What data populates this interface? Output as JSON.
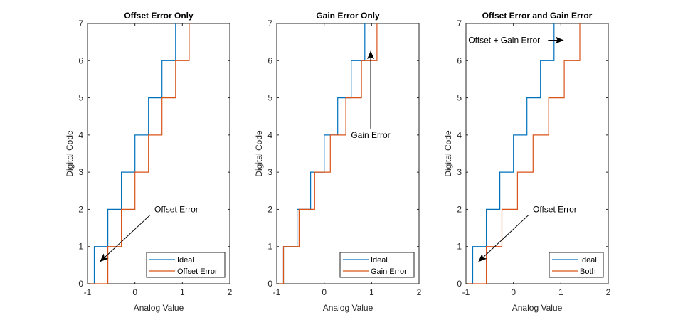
{
  "chart_data": [
    {
      "type": "line",
      "step": true,
      "title": "Offset Error Only",
      "xlabel": "Analog Value",
      "ylabel": "Digital Code",
      "xlim": [
        -1,
        2
      ],
      "ylim": [
        0,
        7
      ],
      "xticks": [
        "-1",
        "0",
        "1",
        "2"
      ],
      "yticks": [
        "0",
        "1",
        "2",
        "3",
        "4",
        "5",
        "6",
        "7"
      ],
      "grid": false,
      "legend": {
        "placement": "bottom-right",
        "entries": [
          "Ideal",
          "Offset Error"
        ]
      },
      "series": [
        {
          "name": "Ideal",
          "color": "#0072BD",
          "transitions": [
            -0.857,
            -0.571,
            -0.286,
            0.0,
            0.286,
            0.571,
            0.857
          ]
        },
        {
          "name": "Offset Error",
          "color": "#D95319",
          "transitions": [
            -0.571,
            -0.286,
            0.0,
            0.286,
            0.571,
            0.857,
            1.143
          ]
        }
      ],
      "annotations": [
        {
          "text": "Offset Error",
          "text_at": [
            0.2,
            2.0
          ],
          "arrow_to": [
            -0.73,
            0.6
          ]
        }
      ]
    },
    {
      "type": "line",
      "step": true,
      "title": "Gain Error Only",
      "xlabel": "Analog Value",
      "ylabel": "Digital Code",
      "xlim": [
        -1,
        2
      ],
      "ylim": [
        0,
        7
      ],
      "xticks": [
        "-1",
        "0",
        "1",
        "2"
      ],
      "yticks": [
        "0",
        "1",
        "2",
        "3",
        "4",
        "5",
        "6",
        "7"
      ],
      "grid": false,
      "legend": {
        "placement": "bottom-right",
        "entries": [
          "Ideal",
          "Gain Error"
        ]
      },
      "series": [
        {
          "name": "Ideal",
          "color": "#0072BD",
          "transitions": [
            -0.857,
            -0.571,
            -0.286,
            0.0,
            0.286,
            0.571,
            0.857
          ]
        },
        {
          "name": "Gain Error",
          "color": "#D95319",
          "transitions": [
            -0.857,
            -0.529,
            -0.2,
            0.129,
            0.457,
            0.786,
            1.114
          ]
        }
      ],
      "annotations": [
        {
          "text": "Gain Error",
          "text_at": [
            0.98,
            4.0
          ],
          "arrow_to": [
            0.98,
            6.25
          ]
        }
      ]
    },
    {
      "type": "line",
      "step": true,
      "title": "Offset Error and Gain Error",
      "xlabel": "Analog Value",
      "ylabel": "Digital Code",
      "xlim": [
        -1,
        2
      ],
      "ylim": [
        0,
        7
      ],
      "xticks": [
        "-1",
        "0",
        "1",
        "2"
      ],
      "yticks": [
        "0",
        "1",
        "2",
        "3",
        "4",
        "5",
        "6",
        "7"
      ],
      "grid": false,
      "legend": {
        "placement": "bottom-right",
        "entries": [
          "Ideal",
          "Both"
        ]
      },
      "series": [
        {
          "name": "Ideal",
          "color": "#0072BD",
          "transitions": [
            -0.857,
            -0.571,
            -0.286,
            0.0,
            0.286,
            0.571,
            0.857
          ]
        },
        {
          "name": "Both",
          "color": "#D95319",
          "transitions": [
            -0.571,
            -0.243,
            0.086,
            0.414,
            0.743,
            1.071,
            1.4
          ]
        }
      ],
      "annotations": [
        {
          "text": "Offset + Gain Error",
          "text_at": [
            -0.95,
            6.55
          ],
          "arrow_to": [
            1.05,
            6.55
          ]
        },
        {
          "text": "Offset Error",
          "text_at": [
            0.2,
            2.0
          ],
          "arrow_to": [
            -0.73,
            0.6
          ]
        }
      ]
    }
  ]
}
